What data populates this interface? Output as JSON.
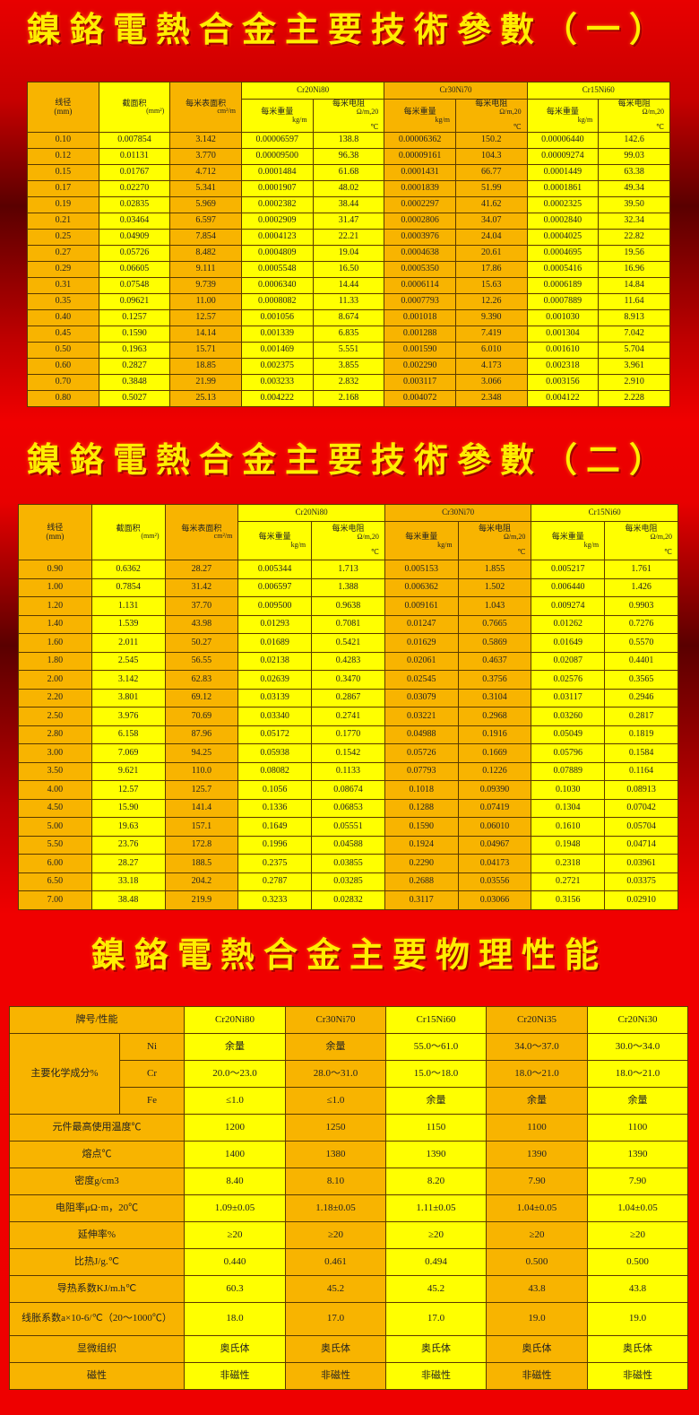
{
  "titles": {
    "t1": "鎳鉻電熱合金主要技術參數（一）",
    "t2": "鎳鉻電熱合金主要技術參數（二）",
    "t3": "鎳鉻電熱合金主要物理性能"
  },
  "colors": {
    "background": "#e80000",
    "orange_cell": "#f8b400",
    "yellow_cell": "#ffff00",
    "title": "#ffee00"
  },
  "spec_header": {
    "diameter": "线径",
    "diameter_unit": "(mm)",
    "area": "截面积",
    "area_unit": "(mm²)",
    "surface": "每米表面积",
    "surface_unit": "cm²/m",
    "alloys": [
      "Cr20Ni80",
      "Cr30Ni70",
      "Cr15Ni60"
    ],
    "weight": "每米重量",
    "weight_unit": "kg/m",
    "resistance": "每米电阻",
    "resistance_unit": "Ω/m,20",
    "resistance_unit2": "℃"
  },
  "table1_rows": [
    [
      "0.10",
      "0.007854",
      "3.142",
      "0.00006597",
      "138.8",
      "0.00006362",
      "150.2",
      "0.00006440",
      "142.6"
    ],
    [
      "0.12",
      "0.01131",
      "3.770",
      "0.00009500",
      "96.38",
      "0.00009161",
      "104.3",
      "0.00009274",
      "99.03"
    ],
    [
      "0.15",
      "0.01767",
      "4.712",
      "0.0001484",
      "61.68",
      "0.0001431",
      "66.77",
      "0.0001449",
      "63.38"
    ],
    [
      "0.17",
      "0.02270",
      "5.341",
      "0.0001907",
      "48.02",
      "0.0001839",
      "51.99",
      "0.0001861",
      "49.34"
    ],
    [
      "0.19",
      "0.02835",
      "5.969",
      "0.0002382",
      "38.44",
      "0.0002297",
      "41.62",
      "0.0002325",
      "39.50"
    ],
    [
      "0.21",
      "0.03464",
      "6.597",
      "0.0002909",
      "31.47",
      "0.0002806",
      "34.07",
      "0.0002840",
      "32.34"
    ],
    [
      "0.25",
      "0.04909",
      "7.854",
      "0.0004123",
      "22.21",
      "0.0003976",
      "24.04",
      "0.0004025",
      "22.82"
    ],
    [
      "0.27",
      "0.05726",
      "8.482",
      "0.0004809",
      "19.04",
      "0.0004638",
      "20.61",
      "0.0004695",
      "19.56"
    ],
    [
      "0.29",
      "0.06605",
      "9.111",
      "0.0005548",
      "16.50",
      "0.0005350",
      "17.86",
      "0.0005416",
      "16.96"
    ],
    [
      "0.31",
      "0.07548",
      "9.739",
      "0.0006340",
      "14.44",
      "0.0006114",
      "15.63",
      "0.0006189",
      "14.84"
    ],
    [
      "0.35",
      "0.09621",
      "11.00",
      "0.0008082",
      "11.33",
      "0.0007793",
      "12.26",
      "0.0007889",
      "11.64"
    ],
    [
      "0.40",
      "0.1257",
      "12.57",
      "0.001056",
      "8.674",
      "0.001018",
      "9.390",
      "0.001030",
      "8.913"
    ],
    [
      "0.45",
      "0.1590",
      "14.14",
      "0.001339",
      "6.835",
      "0.001288",
      "7.419",
      "0.001304",
      "7.042"
    ],
    [
      "0.50",
      "0.1963",
      "15.71",
      "0.001469",
      "5.551",
      "0.001590",
      "6.010",
      "0.001610",
      "5.704"
    ],
    [
      "0.60",
      "0.2827",
      "18.85",
      "0.002375",
      "3.855",
      "0.002290",
      "4.173",
      "0.002318",
      "3.961"
    ],
    [
      "0.70",
      "0.3848",
      "21.99",
      "0.003233",
      "2.832",
      "0.003117",
      "3.066",
      "0.003156",
      "2.910"
    ],
    [
      "0.80",
      "0.5027",
      "25.13",
      "0.004222",
      "2.168",
      "0.004072",
      "2.348",
      "0.004122",
      "2.228"
    ]
  ],
  "table2_rows": [
    [
      "0.90",
      "0.6362",
      "28.27",
      "0.005344",
      "1.713",
      "0.005153",
      "1.855",
      "0.005217",
      "1.761"
    ],
    [
      "1.00",
      "0.7854",
      "31.42",
      "0.006597",
      "1.388",
      "0.006362",
      "1.502",
      "0.006440",
      "1.426"
    ],
    [
      "1.20",
      "1.131",
      "37.70",
      "0.009500",
      "0.9638",
      "0.009161",
      "1.043",
      "0.009274",
      "0.9903"
    ],
    [
      "1.40",
      "1.539",
      "43.98",
      "0.01293",
      "0.7081",
      "0.01247",
      "0.7665",
      "0.01262",
      "0.7276"
    ],
    [
      "1.60",
      "2.011",
      "50.27",
      "0.01689",
      "0.5421",
      "0.01629",
      "0.5869",
      "0.01649",
      "0.5570"
    ],
    [
      "1.80",
      "2.545",
      "56.55",
      "0.02138",
      "0.4283",
      "0.02061",
      "0.4637",
      "0.02087",
      "0.4401"
    ],
    [
      "2.00",
      "3.142",
      "62.83",
      "0.02639",
      "0.3470",
      "0.02545",
      "0.3756",
      "0.02576",
      "0.3565"
    ],
    [
      "2.20",
      "3.801",
      "69.12",
      "0.03139",
      "0.2867",
      "0.03079",
      "0.3104",
      "0.03117",
      "0.2946"
    ],
    [
      "2.50",
      "3.976",
      "70.69",
      "0.03340",
      "0.2741",
      "0.03221",
      "0.2968",
      "0.03260",
      "0.2817"
    ],
    [
      "2.80",
      "6.158",
      "87.96",
      "0.05172",
      "0.1770",
      "0.04988",
      "0.1916",
      "0.05049",
      "0.1819"
    ],
    [
      "3.00",
      "7.069",
      "94.25",
      "0.05938",
      "0.1542",
      "0.05726",
      "0.1669",
      "0.05796",
      "0.1584"
    ],
    [
      "3.50",
      "9.621",
      "110.0",
      "0.08082",
      "0.1133",
      "0.07793",
      "0.1226",
      "0.07889",
      "0.1164"
    ],
    [
      "4.00",
      "12.57",
      "125.7",
      "0.1056",
      "0.08674",
      "0.1018",
      "0.09390",
      "0.1030",
      "0.08913"
    ],
    [
      "4.50",
      "15.90",
      "141.4",
      "0.1336",
      "0.06853",
      "0.1288",
      "0.07419",
      "0.1304",
      "0.07042"
    ],
    [
      "5.00",
      "19.63",
      "157.1",
      "0.1649",
      "0.05551",
      "0.1590",
      "0.06010",
      "0.1610",
      "0.05704"
    ],
    [
      "5.50",
      "23.76",
      "172.8",
      "0.1996",
      "0.04588",
      "0.1924",
      "0.04967",
      "0.1948",
      "0.04714"
    ],
    [
      "6.00",
      "28.27",
      "188.5",
      "0.2375",
      "0.03855",
      "0.2290",
      "0.04173",
      "0.2318",
      "0.03961"
    ],
    [
      "6.50",
      "33.18",
      "204.2",
      "0.2787",
      "0.03285",
      "0.2688",
      "0.03556",
      "0.2721",
      "0.03375"
    ],
    [
      "7.00",
      "38.48",
      "219.9",
      "0.3233",
      "0.02832",
      "0.3117",
      "0.03066",
      "0.3156",
      "0.02910"
    ]
  ],
  "props": {
    "header_label": "牌号/性能",
    "grades": [
      "Cr20Ni80",
      "Cr30Ni70",
      "Cr15Ni60",
      "Cr20Ni35",
      "Cr20Ni30"
    ],
    "chem_label": "主要化学成分%",
    "chem_rows": [
      {
        "el": "Ni",
        "values": [
          "余量",
          "余量",
          "55.0～61.0",
          "34.0～37.0",
          "30.0～34.0"
        ]
      },
      {
        "el": "Cr",
        "values": [
          "20.0～23.0",
          "28.0～31.0",
          "15.0～18.0",
          "18.0～21.0",
          "18.0～21.0"
        ]
      },
      {
        "el": "Fe",
        "values": [
          "≤1.0",
          "≤1.0",
          "余量",
          "余量",
          "余量"
        ]
      }
    ],
    "rows": [
      {
        "label": "元件最高使用温度℃",
        "values": [
          "1200",
          "1250",
          "1150",
          "1100",
          "1100"
        ]
      },
      {
        "label": "熔点℃",
        "values": [
          "1400",
          "1380",
          "1390",
          "1390",
          "1390"
        ]
      },
      {
        "label": "密度g/cm3",
        "values": [
          "8.40",
          "8.10",
          "8.20",
          "7.90",
          "7.90"
        ]
      },
      {
        "label": "电阻率μΩ·m，20℃",
        "values": [
          "1.09±0.05",
          "1.18±0.05",
          "1.11±0.05",
          "1.04±0.05",
          "1.04±0.05"
        ]
      },
      {
        "label": "延伸率%",
        "values": [
          "≥20",
          "≥20",
          "≥20",
          "≥20",
          "≥20"
        ]
      },
      {
        "label": "比热J/g.℃",
        "values": [
          "0.440",
          "0.461",
          "0.494",
          "0.500",
          "0.500"
        ]
      },
      {
        "label": "导热系数KJ/m.h℃",
        "values": [
          "60.3",
          "45.2",
          "45.2",
          "43.8",
          "43.8"
        ]
      },
      {
        "label": "线胀系数a×10-6/℃（20～1000℃）",
        "values": [
          "18.0",
          "17.0",
          "17.0",
          "19.0",
          "19.0"
        ]
      },
      {
        "label": "显微组织",
        "values": [
          "奥氏体",
          "奥氏体",
          "奥氏体",
          "奥氏体",
          "奥氏体"
        ]
      },
      {
        "label": "磁性",
        "values": [
          "非磁性",
          "非磁性",
          "非磁性",
          "非磁性",
          "非磁性"
        ]
      }
    ]
  }
}
